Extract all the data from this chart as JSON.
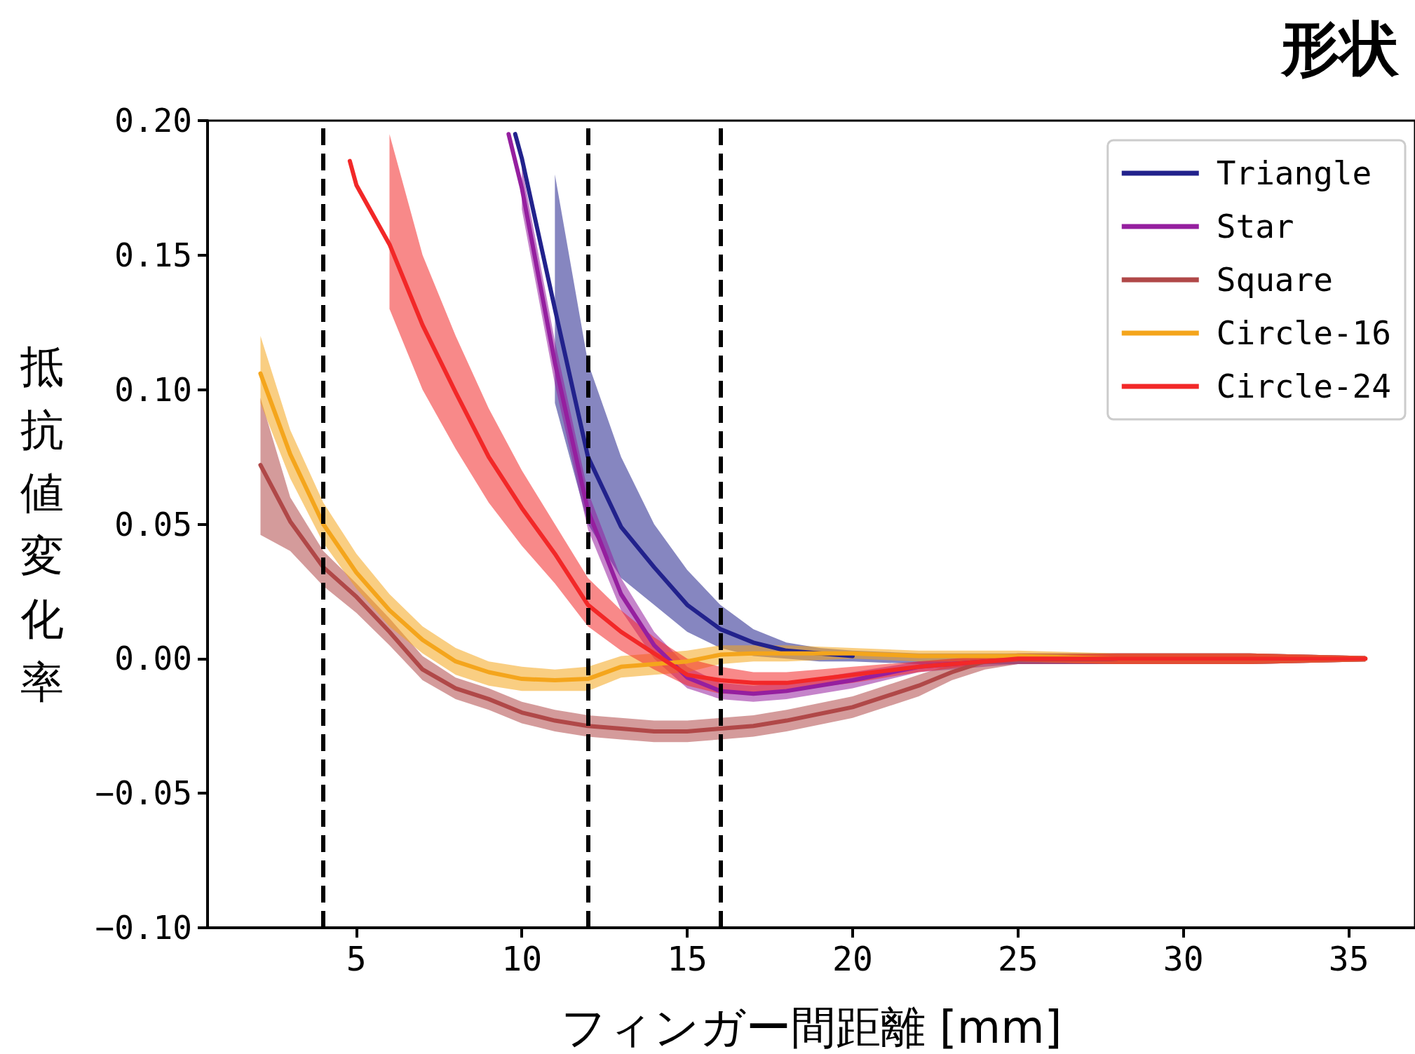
{
  "chart_data": {
    "type": "line",
    "title": "形状",
    "xlabel": "フィンガー間距離 [mm]",
    "ylabel": "抵抗値変化率",
    "xlim": [
      0.5,
      37
    ],
    "xticks": [
      5,
      10,
      15,
      20,
      25,
      30,
      35
    ],
    "ylim": [
      -0.1,
      0.2
    ],
    "yticks": [
      {
        "value": -0.1,
        "label": "−0.10"
      },
      {
        "value": -0.05,
        "label": "−0.05"
      },
      {
        "value": 0,
        "label": "0.00"
      },
      {
        "value": 0.05,
        "label": "0.05"
      },
      {
        "value": 0.1,
        "label": "0.10"
      },
      {
        "value": 0.15,
        "label": "0.15"
      },
      {
        "value": 0.2,
        "label": "0.20"
      }
    ],
    "legend": "top right",
    "grid": false,
    "marker": "none",
    "line_style": "solid",
    "ref_lines": [
      {
        "axis": "x",
        "value": 4,
        "color": "#000000",
        "line_style": "dashed"
      },
      {
        "axis": "x",
        "value": 12,
        "color": "#000000",
        "line_style": "dashed"
      },
      {
        "axis": "x",
        "value": 16,
        "color": "#000000",
        "line_style": "dashed"
      }
    ],
    "series": [
      {
        "name": "Triangle",
        "color": "#22228c",
        "x": [
          9.8,
          10,
          11,
          12,
          13,
          14,
          15,
          16,
          17,
          18,
          19,
          20,
          22,
          25,
          28,
          32,
          35.5
        ],
        "values": [
          0.195,
          0.186,
          0.13,
          0.075,
          0.049,
          0.034,
          0.02,
          0.011,
          0.006,
          0.003,
          0.002,
          0.001,
          null,
          0,
          0,
          null,
          null
        ],
        "upper": [
          null,
          null,
          0.18,
          0.11,
          0.075,
          0.05,
          0.033,
          0.02,
          0.011,
          0.006,
          0.004,
          0.003,
          0.002,
          0.002,
          0.002,
          0.002,
          0.001
        ],
        "lower": [
          null,
          null,
          0.095,
          0.05,
          0.03,
          0.02,
          0.01,
          0.004,
          0.001,
          0,
          -0.001,
          -0.001,
          -0.002,
          -0.002,
          -0.002,
          -0.002,
          -0.001
        ]
      },
      {
        "name": "Star",
        "color": "#951f9f",
        "x": [
          9.6,
          10,
          11,
          12,
          13,
          14,
          15,
          16,
          17,
          18,
          20,
          22,
          24,
          25,
          28,
          32,
          35.5
        ],
        "values": [
          0.195,
          0.175,
          0.11,
          0.055,
          0.024,
          0.005,
          -0.007,
          -0.012,
          -0.013,
          -0.012,
          -0.008,
          -0.003,
          -0.001,
          null,
          null,
          null,
          null
        ],
        "upper": [
          null,
          0.183,
          0.118,
          0.062,
          0.03,
          0.01,
          -0.003,
          -0.009,
          -0.01,
          -0.009,
          -0.005,
          -0.001,
          0.001,
          0.002,
          0.002,
          0.002,
          0.001
        ],
        "lower": [
          null,
          0.167,
          0.102,
          0.048,
          0.018,
          0,
          -0.011,
          -0.015,
          -0.016,
          -0.015,
          -0.011,
          -0.005,
          -0.003,
          -0.002,
          -0.002,
          -0.002,
          -0.001
        ]
      },
      {
        "name": "Square",
        "color": "#b04848",
        "x": [
          2.1,
          3,
          4,
          5,
          6,
          7,
          8,
          9,
          10,
          11,
          12,
          13,
          14,
          15,
          16,
          17,
          18,
          20,
          22,
          23,
          24,
          25,
          28,
          32,
          35.5
        ],
        "values": [
          0.072,
          0.051,
          0.034,
          0.023,
          0.01,
          -0.004,
          -0.011,
          -0.015,
          -0.02,
          -0.023,
          -0.025,
          -0.026,
          -0.027,
          -0.027,
          -0.026,
          -0.025,
          -0.023,
          -0.018,
          -0.01,
          -0.005,
          -0.001,
          0,
          0,
          0,
          0
        ],
        "upper": [
          0.097,
          0.06,
          0.04,
          0.028,
          0.015,
          0.001,
          -0.007,
          -0.011,
          -0.016,
          -0.019,
          -0.021,
          -0.022,
          -0.023,
          -0.023,
          -0.022,
          -0.021,
          -0.019,
          -0.014,
          -0.006,
          -0.002,
          0.001,
          0.002,
          0.002,
          0.002,
          0.001
        ],
        "lower": [
          0.046,
          0.04,
          0.027,
          0.017,
          0.005,
          -0.008,
          -0.015,
          -0.019,
          -0.024,
          -0.027,
          -0.029,
          -0.03,
          -0.031,
          -0.031,
          -0.03,
          -0.029,
          -0.027,
          -0.022,
          -0.014,
          -0.008,
          -0.004,
          -0.002,
          -0.002,
          -0.002,
          -0.001
        ]
      },
      {
        "name": "Circle-16",
        "color": "#f4a51c",
        "x": [
          2.1,
          3,
          4,
          5,
          6,
          7,
          8,
          9,
          10,
          11,
          12,
          13,
          14,
          15,
          16,
          17,
          18,
          20,
          22,
          25,
          28,
          32,
          35.5
        ],
        "values": [
          0.106,
          0.076,
          0.05,
          0.032,
          0.018,
          0.007,
          -0.001,
          -0.005,
          -0.0075,
          -0.008,
          -0.0075,
          -0.003,
          -0.002,
          -0.001,
          0.0015,
          0.002,
          0.002,
          0.002,
          0.001,
          0.001,
          0,
          0,
          0
        ],
        "upper": [
          0.12,
          0.085,
          0.058,
          0.039,
          0.024,
          0.012,
          0.004,
          -0.001,
          -0.003,
          -0.004,
          -0.003,
          0.001,
          0.002,
          0.003,
          0.005,
          0.005,
          0.005,
          0.004,
          0.003,
          0.003,
          0.002,
          0.002,
          0.001
        ],
        "lower": [
          0.095,
          0.067,
          0.043,
          0.026,
          0.012,
          0.002,
          -0.006,
          -0.01,
          -0.012,
          -0.012,
          -0.012,
          -0.007,
          -0.006,
          -0.005,
          -0.002,
          -0.001,
          -0.001,
          0,
          -0.001,
          -0.001,
          -0.002,
          -0.002,
          -0.001
        ]
      },
      {
        "name": "Circle-24",
        "color": "#f22828",
        "x": [
          4.8,
          5,
          6,
          7,
          8,
          9,
          10,
          11,
          12,
          13,
          14,
          15,
          16,
          17,
          18,
          20,
          22,
          24,
          25,
          28,
          32,
          35.5
        ],
        "values": [
          0.185,
          0.176,
          0.154,
          0.124,
          0.099,
          0.075,
          0.056,
          0.039,
          0.02,
          0.01,
          0.002,
          -0.006,
          -0.008,
          -0.009,
          -0.009,
          -0.006,
          -0.003,
          -0.001,
          0,
          0,
          0,
          0
        ],
        "upper": [
          null,
          null,
          0.195,
          0.15,
          0.12,
          0.093,
          0.07,
          0.05,
          0.03,
          0.018,
          0.008,
          0,
          -0.003,
          -0.005,
          -0.005,
          -0.003,
          -0.001,
          0.001,
          0.001,
          0.002,
          0.002,
          0.001
        ],
        "lower": [
          null,
          null,
          0.13,
          0.1,
          0.078,
          0.058,
          0.042,
          0.028,
          0.012,
          0.003,
          -0.004,
          -0.01,
          -0.013,
          -0.013,
          -0.012,
          -0.009,
          -0.005,
          -0.002,
          -0.001,
          -0.002,
          -0.002,
          -0.001
        ]
      }
    ]
  }
}
